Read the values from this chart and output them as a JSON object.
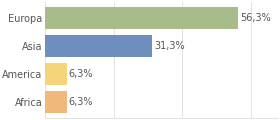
{
  "categories": [
    "Africa",
    "America",
    "Asia",
    "Europa"
  ],
  "values": [
    6.3,
    6.3,
    31.3,
    56.3
  ],
  "bar_colors": [
    "#f0b87a",
    "#f5d47a",
    "#6e8fbe",
    "#a8bc8a"
  ],
  "labels": [
    "6,3%",
    "6,3%",
    "31,3%",
    "56,3%"
  ],
  "xlim": [
    0,
    68
  ],
  "background_color": "#ffffff",
  "text_color": "#555555",
  "label_fontsize": 7.0,
  "tick_fontsize": 7.0,
  "grid_color": "#dddddd",
  "xticks": [
    0,
    20,
    40,
    60
  ]
}
